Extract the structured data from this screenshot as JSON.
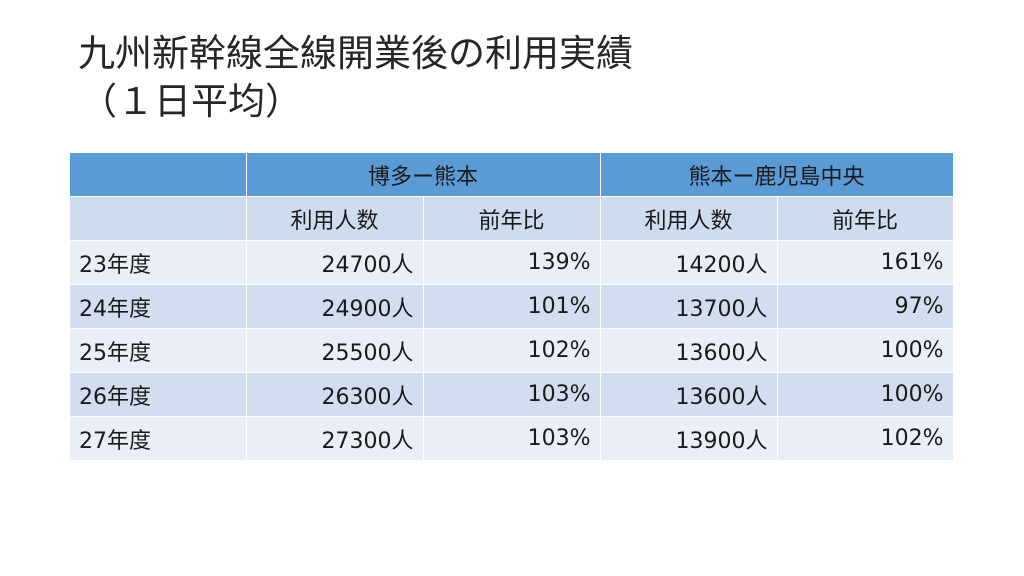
{
  "slide": {
    "title_line1": "九州新幹線全線開業後の利用実績",
    "title_line2": "（１日平均）"
  },
  "table": {
    "corner_top": "",
    "corner_sub": "",
    "sections": [
      {
        "label": "博多ー熊本",
        "col1": "利用人数",
        "col2": "前年比"
      },
      {
        "label": "熊本ー鹿児島中央",
        "col1": "利用人数",
        "col2": "前年比"
      }
    ],
    "rows": [
      {
        "year": "23年度",
        "a_users": "24700人",
        "a_yoy": "139%",
        "b_users": "14200人",
        "b_yoy": "161%"
      },
      {
        "year": "24年度",
        "a_users": "24900人",
        "a_yoy": "101%",
        "b_users": "13700人",
        "b_yoy": "97%"
      },
      {
        "year": "25年度",
        "a_users": "25500人",
        "a_yoy": "102%",
        "b_users": "13600人",
        "b_yoy": "100%"
      },
      {
        "year": "26年度",
        "a_users": "26300人",
        "a_yoy": "103%",
        "b_users": "13600人",
        "b_yoy": "100%"
      },
      {
        "year": "27年度",
        "a_users": "27300人",
        "a_yoy": "103%",
        "b_users": "13900人",
        "b_yoy": "102%"
      }
    ]
  }
}
